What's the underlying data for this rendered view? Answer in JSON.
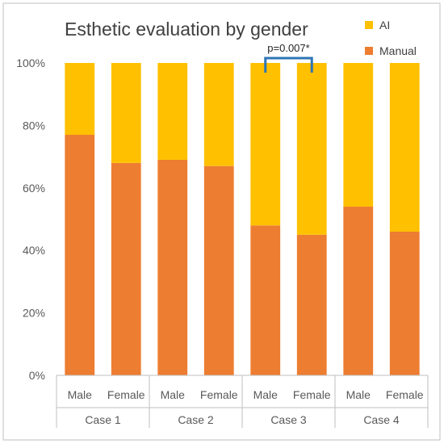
{
  "chart_data": {
    "type": "bar",
    "stacked": true,
    "percent": true,
    "title": "Esthetic evaluation by gender",
    "groups": [
      "Case 1",
      "Case 2",
      "Case 3",
      "Case 4"
    ],
    "categories": [
      "Male",
      "Female",
      "Male",
      "Female",
      "Male",
      "Female",
      "Male",
      "Female"
    ],
    "series": [
      {
        "name": "Manual",
        "color": "#ED7D31",
        "values": [
          77,
          68,
          69,
          67,
          48,
          45,
          54,
          46
        ]
      },
      {
        "name": "AI",
        "color": "#FFC000",
        "values": [
          23,
          32,
          31,
          33,
          52,
          55,
          46,
          54
        ]
      }
    ],
    "y_ticks": [
      "0%",
      "20%",
      "40%",
      "60%",
      "80%",
      "100%"
    ],
    "ylim": [
      0,
      100
    ],
    "grid": false,
    "legend_position": "top-right",
    "annotation": {
      "text": "p=0.007*",
      "bar_indices": [
        4,
        5
      ]
    }
  }
}
